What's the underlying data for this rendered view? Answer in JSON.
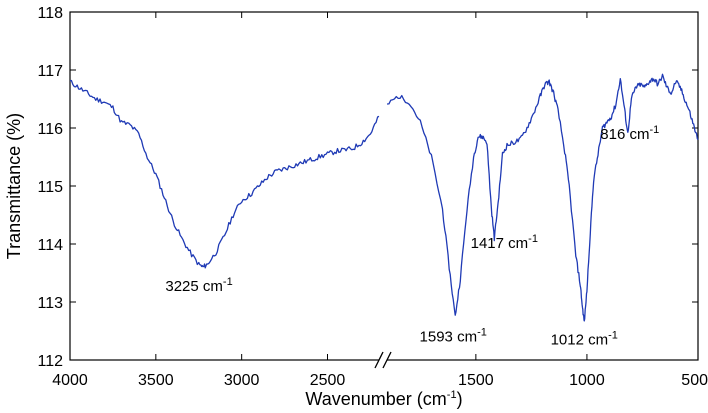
{
  "chart_data": {
    "type": "line",
    "title": "",
    "xlabel": "Wavenumber (cm",
    "xlabel_sup": "-1",
    "xlabel_tail": ")",
    "ylabel": "Transmittance (%)",
    "ylim": [
      112,
      118
    ],
    "xlim": [
      4000,
      500
    ],
    "x_axis_reversed": true,
    "x_axis_break": [
      2200,
      1900
    ],
    "grid": false,
    "legend": "none",
    "x_ticks": [
      {
        "value": 4000,
        "label": "4000",
        "segment": 0
      },
      {
        "value": 3500,
        "label": "3500",
        "segment": 0
      },
      {
        "value": 3000,
        "label": "3000",
        "segment": 0
      },
      {
        "value": 2500,
        "label": "2500",
        "segment": 0
      },
      {
        "value": 1500,
        "label": "1500",
        "segment": 1
      },
      {
        "value": 1000,
        "label": "1000",
        "segment": 1
      },
      {
        "value": 500,
        "label": "500",
        "segment": 1
      }
    ],
    "y_ticks": [
      {
        "value": 112,
        "label": "112"
      },
      {
        "value": 113,
        "label": "113"
      },
      {
        "value": 114,
        "label": "114"
      },
      {
        "value": 115,
        "label": "115"
      },
      {
        "value": 116,
        "label": "116"
      },
      {
        "value": 117,
        "label": "117"
      },
      {
        "value": 118,
        "label": "118"
      }
    ],
    "series": [
      {
        "color": "#1f3ab5",
        "segments": [
          {
            "x": [
              4000,
              3950,
              3900,
              3850,
              3800,
              3750,
              3700,
              3650,
              3600,
              3550,
              3500,
              3450,
              3400,
              3350,
              3300,
              3250,
              3225,
              3200,
              3150,
              3100,
              3050,
              3000,
              2950,
              2900,
              2850,
              2800,
              2750,
              2700,
              2650,
              2600,
              2550,
              2500,
              2450,
              2400,
              2350,
              2300,
              2250,
              2200
            ],
            "y": [
              116.8,
              116.7,
              116.6,
              116.5,
              116.45,
              116.35,
              116.1,
              116.05,
              115.9,
              115.5,
              115.2,
              114.8,
              114.4,
              114.1,
              113.85,
              113.65,
              113.6,
              113.65,
              113.85,
              114.15,
              114.5,
              114.75,
              114.85,
              115.0,
              115.15,
              115.25,
              115.3,
              115.35,
              115.4,
              115.45,
              115.5,
              115.55,
              115.6,
              115.62,
              115.65,
              115.75,
              115.9,
              116.2
            ]
          },
          {
            "x": [
              1900,
              1850,
              1800,
              1750,
              1700,
              1650,
              1620,
              1593,
              1570,
              1540,
              1510,
              1490,
              1470,
              1450,
              1430,
              1417,
              1400,
              1380,
              1360,
              1330,
              1300,
              1270,
              1240,
              1210,
              1190,
              1170,
              1150,
              1130,
              1100,
              1080,
              1050,
              1030,
              1020,
              1012,
              1000,
              985,
              970,
              950,
              930,
              910,
              890,
              870,
              850,
              830,
              816,
              800,
              780,
              760,
              740,
              720,
              700,
              680,
              660,
              640,
              620,
              600,
              580,
              560,
              540,
              520,
              500
            ],
            "y": [
              116.4,
              116.55,
              116.45,
              116.1,
              115.5,
              114.6,
              113.6,
              112.75,
              113.4,
              114.6,
              115.5,
              115.85,
              115.85,
              115.75,
              114.6,
              114.1,
              114.7,
              115.55,
              115.7,
              115.75,
              115.8,
              116.0,
              116.25,
              116.55,
              116.75,
              116.8,
              116.6,
              116.3,
              115.6,
              115.0,
              113.8,
              113.3,
              112.9,
              112.65,
              113.2,
              114.2,
              115.1,
              115.55,
              116.0,
              116.1,
              116.2,
              116.4,
              116.85,
              116.3,
              115.9,
              116.5,
              116.7,
              116.75,
              116.7,
              116.8,
              116.85,
              116.75,
              116.9,
              116.7,
              116.6,
              116.8,
              116.7,
              116.5,
              116.3,
              116.05,
              115.8
            ]
          }
        ]
      }
    ],
    "annotations": [
      {
        "id": "peak-3225",
        "value": "3225 cm",
        "sup": "-1",
        "x": 3225,
        "y": 113.6
      },
      {
        "id": "peak-1593",
        "value": "1593 cm",
        "sup": "-1",
        "x": 1593,
        "y": 112.75
      },
      {
        "id": "peak-1417",
        "value": "1417 cm",
        "sup": "-1",
        "x": 1417,
        "y": 114.1
      },
      {
        "id": "peak-1012",
        "value": "1012 cm",
        "sup": "-1",
        "x": 1012,
        "y": 112.65
      },
      {
        "id": "peak-816",
        "value": "816 cm",
        "sup": "-1",
        "x": 816,
        "y": 115.9
      }
    ]
  }
}
